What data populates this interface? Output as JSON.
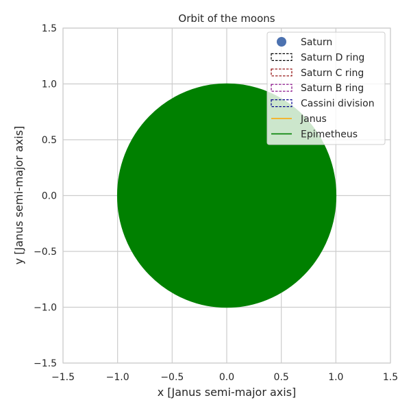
{
  "chart_data": {
    "type": "scatter",
    "title": "Orbit of the moons",
    "xlabel": "x [Janus semi-major axis]",
    "ylabel": "y [Janus semi-major axis]",
    "xlim": [
      -1.5,
      1.5
    ],
    "ylim": [
      -1.5,
      1.5
    ],
    "grid": true,
    "legend_position": "top-right",
    "x_ticks": [
      -1.5,
      -1.0,
      -0.5,
      0.0,
      0.5,
      1.0,
      1.5
    ],
    "y_ticks": [
      -1.5,
      -1.0,
      -0.5,
      0.0,
      0.5,
      1.0,
      1.5
    ],
    "x_tick_labels": [
      "−1.5",
      "−1.0",
      "−0.5",
      "0.0",
      "0.5",
      "1.0",
      "1.5"
    ],
    "y_tick_labels": [
      "−1.5",
      "−1.0",
      "−0.5",
      "0.0",
      "0.5",
      "1.0",
      "1.5"
    ],
    "series": [
      {
        "name": "Saturn",
        "kind": "marker",
        "color": "#4c72b0",
        "x": [
          0.0
        ],
        "y": [
          0.0
        ]
      },
      {
        "name": "Saturn D ring",
        "kind": "dashed-circle",
        "color": "#000000"
      },
      {
        "name": "Saturn C ring",
        "kind": "dashed-circle",
        "color": "#8b0000"
      },
      {
        "name": "Saturn B ring",
        "kind": "dashed-circle",
        "color": "#800080"
      },
      {
        "name": "Cassini division",
        "kind": "dashed-circle",
        "color": "#00008b"
      },
      {
        "name": "Janus",
        "kind": "line",
        "color": "#ffa500"
      },
      {
        "name": "Epimetheus",
        "kind": "filled-orbit",
        "color": "#008000",
        "center": [
          0.0,
          0.0
        ],
        "radius": 1.0
      }
    ]
  }
}
